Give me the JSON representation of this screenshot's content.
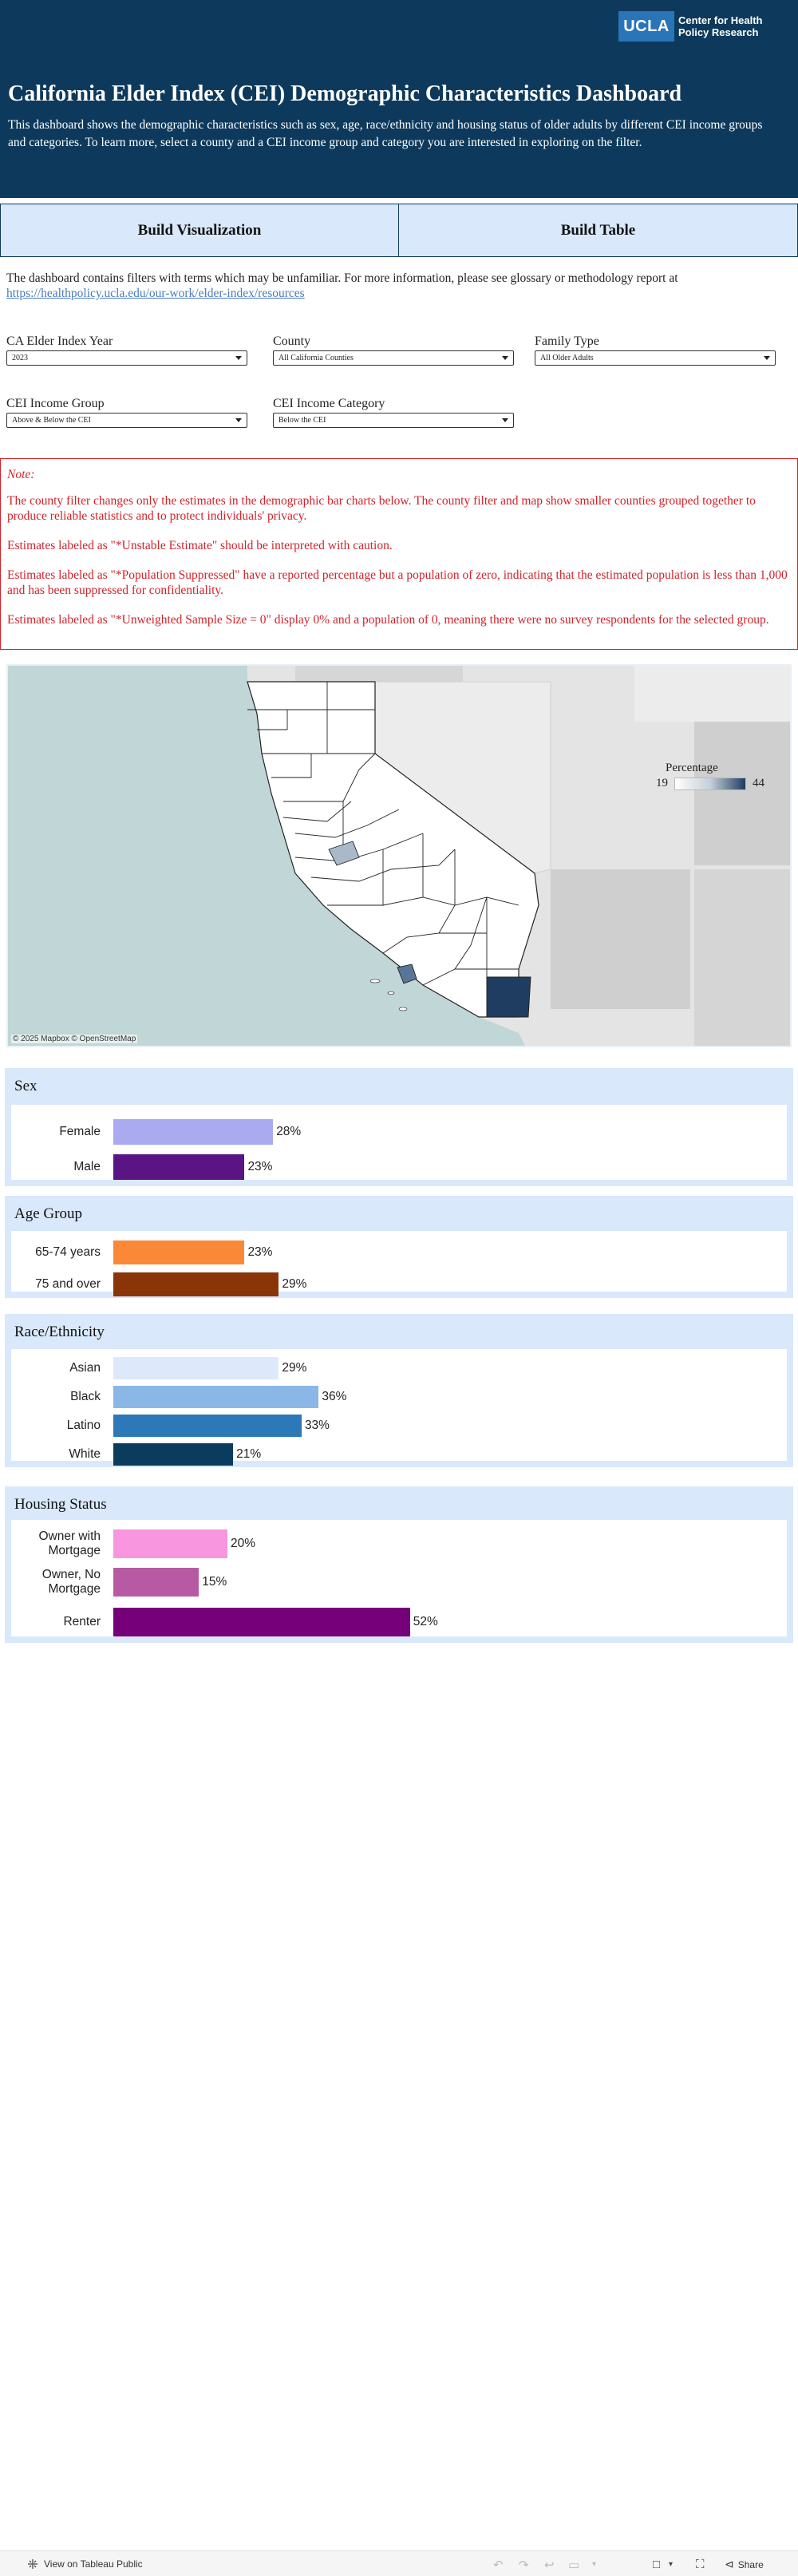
{
  "header": {
    "logo_mark": "UCLA",
    "logo_text": "Center for Health Policy Research",
    "title": "California Elder Index (CEI) Demographic Characteristics Dashboard",
    "intro": "This dashboard shows the demographic characteristics such as sex, age, race/ethnicity and housing status of older adults by different CEI income groups and categories. To learn more, select a county and a CEI income group and category you are interested in exploring on the filter."
  },
  "nav": {
    "build_viz": "Build Visualization",
    "build_table": "Build Table"
  },
  "info": {
    "text": "The dashboard contains filters with terms which may be unfamiliar. For more information, please see glossary or methodology report at",
    "link": "https://healthpolicy.ucla.edu/our-work/elder-index/resources"
  },
  "filters": {
    "year": {
      "label": "CA Elder Index Year",
      "value": "2023"
    },
    "county": {
      "label": "County",
      "value": "All California Counties"
    },
    "family": {
      "label": "Family Type",
      "value": "All Older Adults"
    },
    "income_group": {
      "label": "CEI Income Group",
      "value": "Above & Below the CEI"
    },
    "income_category": {
      "label": "CEI Income Category",
      "value": "Below the CEI"
    }
  },
  "note": {
    "title": "Note:",
    "p1": "The county filter changes only the estimates in the demographic bar charts below. The county filter and map show smaller counties grouped together to produce reliable statistics and to protect individuals' privacy.",
    "p2": "Estimates labeled as \"*Unstable Estimate\" should be interpreted with caution.",
    "p3": "Estimates labeled as \"*Population Suppressed\" have a reported percentage but a population of zero, indicating that the estimated population is less than 1,000 and has been suppressed for confidentiality.",
    "p4": "Estimates labeled as \"*Unweighted Sample Size = 0\" display 0% and a population of 0, meaning there were no survey respondents for the selected group."
  },
  "map": {
    "attribution": "© 2025 Mapbox  © OpenStreetMap",
    "legend_title": "Percentage",
    "legend_min": "19",
    "legend_max": "44",
    "colors": {
      "ocean": "#c1d6d6",
      "land": "#e4e4e4",
      "county": "#ffffff",
      "low": "#ffffff",
      "high": "#1f3d60"
    }
  },
  "chart_data": [
    {
      "type": "bar",
      "title": "Sex",
      "categories": [
        "Female",
        "Male"
      ],
      "values": [
        28,
        23
      ],
      "value_labels": [
        "28%",
        "23%"
      ],
      "colors": [
        "#aaaaf0",
        "#5a1483"
      ]
    },
    {
      "type": "bar",
      "title": "Age Group",
      "categories": [
        "65-74 years",
        "75 and over"
      ],
      "values": [
        23,
        29
      ],
      "value_labels": [
        "23%",
        "29%"
      ],
      "colors": [
        "#fb8836",
        "#8a3508"
      ]
    },
    {
      "type": "bar",
      "title": "Race/Ethnicity",
      "categories": [
        "Asian",
        "Black",
        "Latino",
        "White"
      ],
      "values": [
        29,
        36,
        33,
        21
      ],
      "value_labels": [
        "29%",
        "36%",
        "33%",
        "21%"
      ],
      "colors": [
        "#dde9fb",
        "#8ab7e6",
        "#2d78b6",
        "#0b3c5e"
      ]
    },
    {
      "type": "bar",
      "title": "Housing Status",
      "categories": [
        "Owner with Mortgage",
        "Owner, No Mortgage",
        "Renter"
      ],
      "values": [
        20,
        15,
        52
      ],
      "value_labels": [
        "20%",
        "15%",
        "52%"
      ],
      "colors": [
        "#f896e0",
        "#b85aa3",
        "#75007a"
      ]
    }
  ],
  "footer": {
    "view_label": "View on Tableau Public",
    "share_label": "Share"
  }
}
